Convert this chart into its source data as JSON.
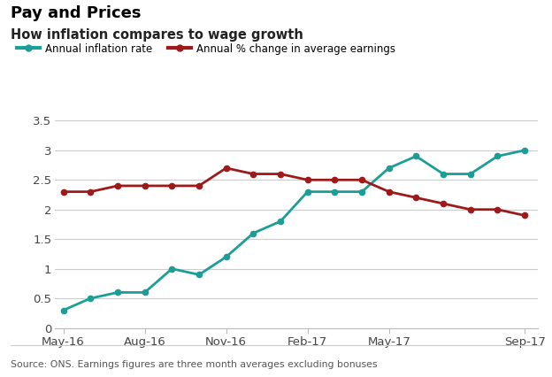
{
  "title": "Pay and Prices",
  "subtitle": "How inflation compares to wage growth",
  "source_text": "Source: ONS. Earnings figures are three month averages excluding bonuses",
  "inflation_label": "Annual inflation rate",
  "earnings_label": "Annual % change in average earnings",
  "inflation_color": "#1a9e96",
  "earnings_color": "#9e1a1a",
  "background_color": "#ffffff",
  "grid_color": "#cccccc",
  "ylim": [
    0,
    3.5
  ],
  "yticks": [
    0,
    0.5,
    1.0,
    1.5,
    2.0,
    2.5,
    3.0,
    3.5
  ],
  "x_tick_labels": [
    "May-16",
    "Aug-16",
    "Nov-16",
    "Feb-17",
    "May-17",
    "Sep-17"
  ],
  "x_tick_positions": [
    0,
    3,
    6,
    9,
    12,
    17
  ],
  "xlim": [
    -0.3,
    17.5
  ],
  "inflation_x": [
    0,
    1,
    2,
    3,
    4,
    5,
    6,
    7,
    8,
    9,
    10,
    11,
    12,
    13,
    14,
    15,
    16,
    17
  ],
  "inflation_y": [
    0.3,
    0.5,
    0.6,
    0.6,
    1.0,
    0.9,
    1.2,
    1.6,
    1.8,
    2.3,
    2.3,
    2.3,
    2.7,
    2.9,
    2.6,
    2.6,
    2.9,
    3.0
  ],
  "earnings_x": [
    0,
    1,
    2,
    3,
    4,
    5,
    6,
    7,
    8,
    9,
    10,
    11,
    12,
    13,
    14,
    15,
    16,
    17
  ],
  "earnings_y": [
    2.3,
    2.3,
    2.4,
    2.4,
    2.4,
    2.4,
    2.7,
    2.6,
    2.6,
    2.5,
    2.5,
    2.5,
    2.3,
    2.2,
    2.1,
    2.0,
    2.0,
    1.9
  ]
}
